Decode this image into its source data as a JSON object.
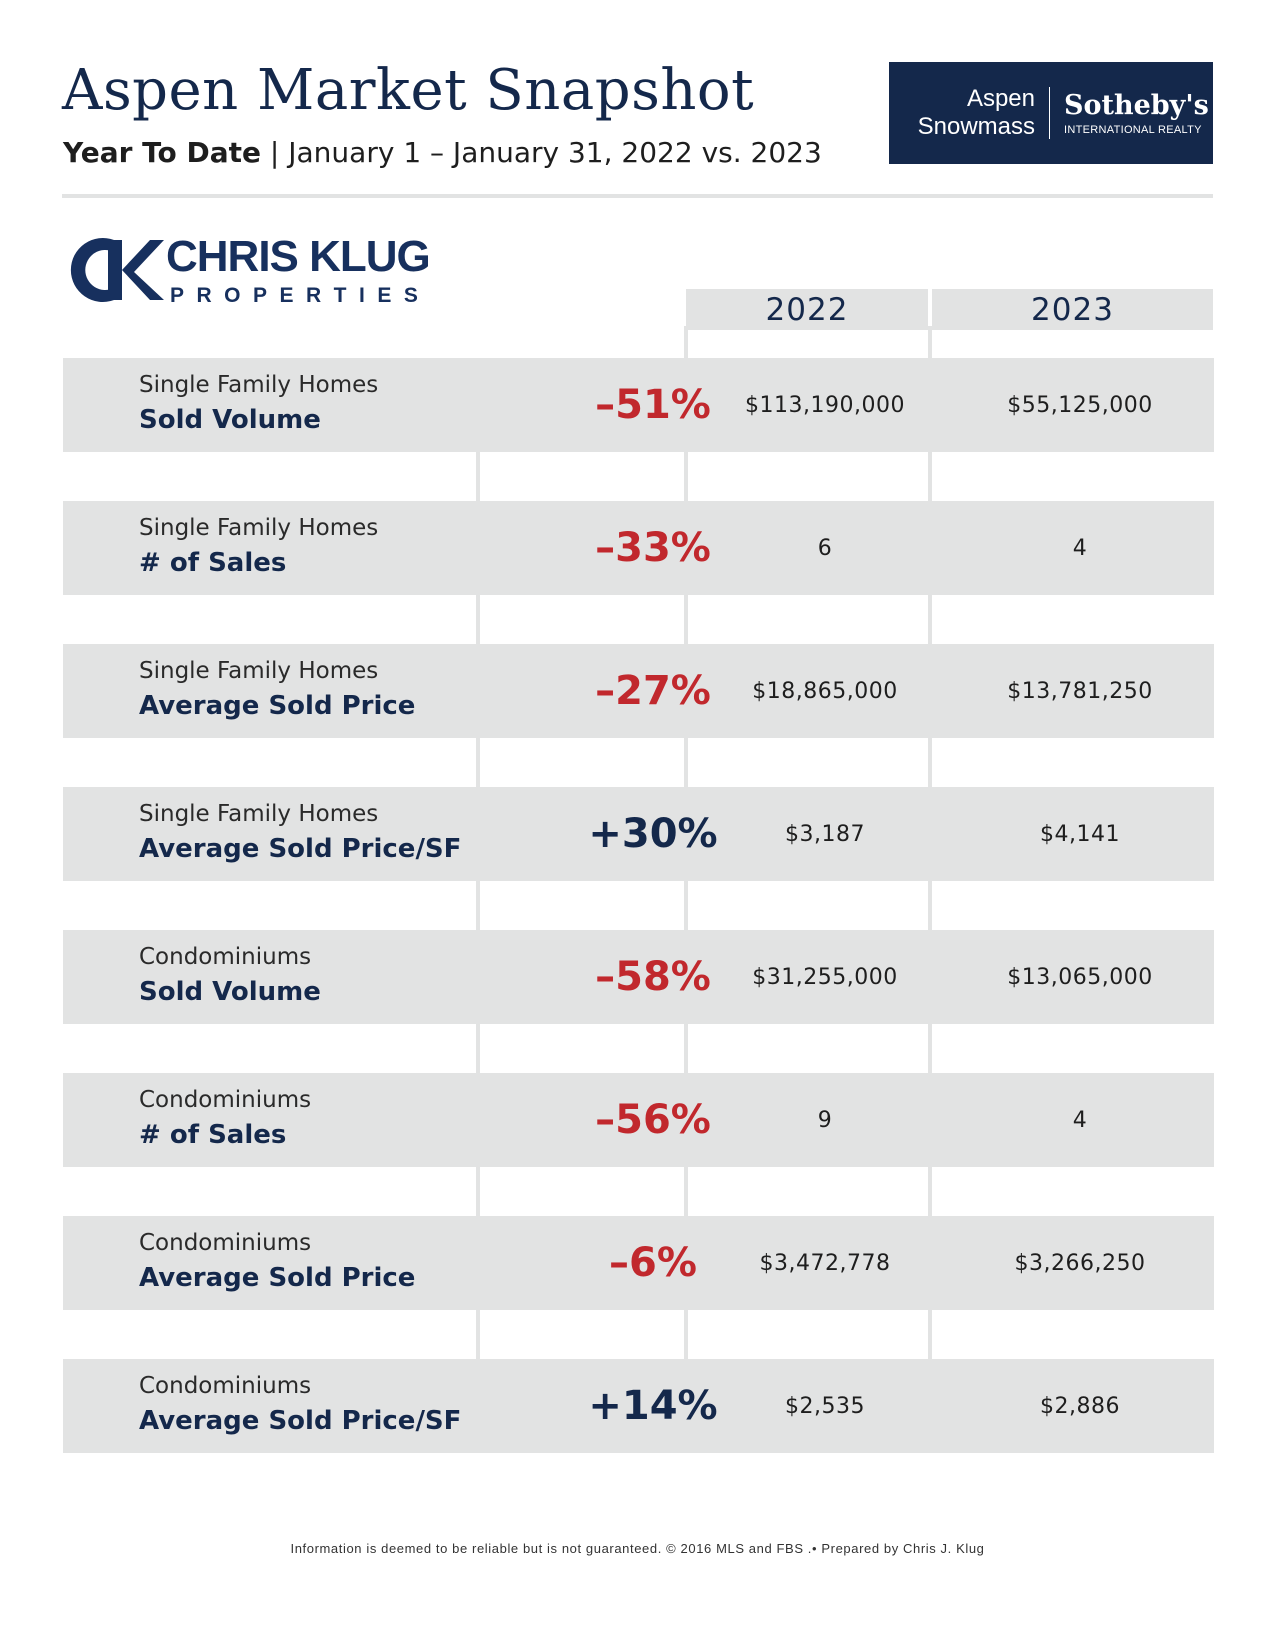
{
  "header": {
    "title": "Aspen Market Snapshot",
    "subtitle_bold": "Year To Date",
    "subtitle_rest": " | January 1 – January 31, 2022 vs. 2023"
  },
  "logos": {
    "sothebys": {
      "left_line1": "Aspen",
      "left_line2": "Snowmass",
      "brand": "Sotheby's",
      "sub": "INTERNATIONAL REALTY"
    },
    "klug": {
      "name": "CHRIS KLUG",
      "sub": "PROPERTIES"
    }
  },
  "columns": [
    "2022",
    "2023"
  ],
  "rows": [
    {
      "category": "Single Family Homes",
      "metric": "Sold Volume",
      "change": "–51%",
      "direction": "down",
      "v2022": "$113,190,000",
      "v2023": "$55,125,000"
    },
    {
      "category": "Single Family Homes",
      "metric": "# of Sales",
      "change": "–33%",
      "direction": "down",
      "v2022": "6",
      "v2023": "4"
    },
    {
      "category": "Single Family Homes",
      "metric": "Average Sold Price",
      "change": "–27%",
      "direction": "down",
      "v2022": "$18,865,000",
      "v2023": "$13,781,250"
    },
    {
      "category": "Single Family Homes",
      "metric": "Average Sold Price/SF",
      "change": "+30%",
      "direction": "up",
      "v2022": "$3,187",
      "v2023": "$4,141"
    },
    {
      "category": "Condominiums",
      "metric": "Sold Volume",
      "change": "–58%",
      "direction": "down",
      "v2022": "$31,255,000",
      "v2023": "$13,065,000"
    },
    {
      "category": "Condominiums",
      "metric": "# of Sales",
      "change": "–56%",
      "direction": "down",
      "v2022": "9",
      "v2023": "4"
    },
    {
      "category": "Condominiums",
      "metric": "Average Sold Price",
      "change": "–6%",
      "direction": "down",
      "v2022": "$3,472,778",
      "v2023": "$3,266,250"
    },
    {
      "category": "Condominiums",
      "metric": "Average Sold Price/SF",
      "change": "+14%",
      "direction": "up",
      "v2022": "$2,535",
      "v2023": "$2,886"
    }
  ],
  "colors": {
    "navy": "#14284b",
    "negative": "#c1282d",
    "row_bg": "#e2e3e3"
  },
  "footer": "Information is deemed to be reliable but is not guaranteed. © 2016 MLS and FBS .• Prepared by Chris J. Klug"
}
